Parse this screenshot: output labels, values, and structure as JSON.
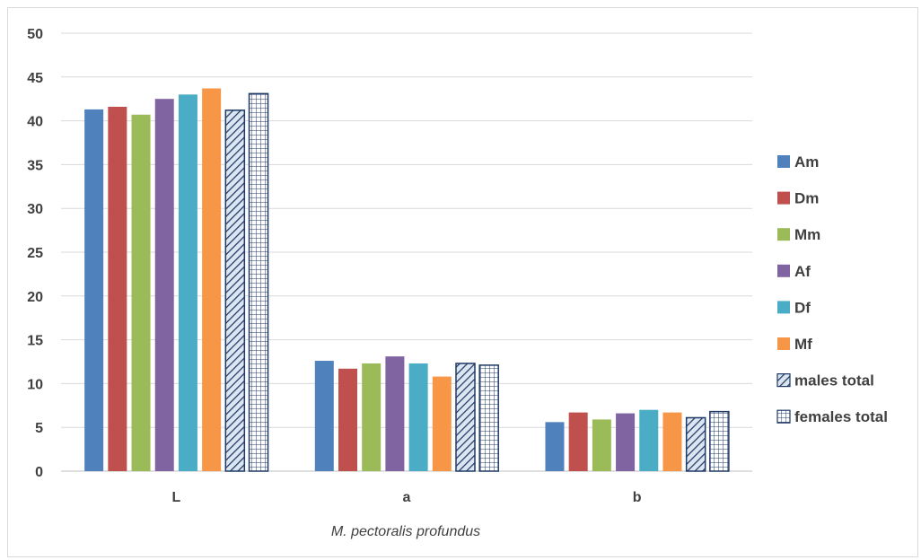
{
  "chart_data": {
    "type": "bar",
    "categories": [
      "L",
      "a",
      "b"
    ],
    "xlabel": "M. pectoralis profundus",
    "ylabel": "",
    "ylim": [
      0,
      50
    ],
    "yticks": [
      0,
      5,
      10,
      15,
      20,
      25,
      30,
      35,
      40,
      45,
      50
    ],
    "grid": true,
    "legend_position": "right",
    "series": [
      {
        "name": "Am",
        "values": [
          41.3,
          12.6,
          5.6
        ],
        "color": "#4f81bd",
        "pattern": "solid"
      },
      {
        "name": "Dm",
        "values": [
          41.6,
          11.7,
          6.7
        ],
        "color": "#c0504d",
        "pattern": "solid"
      },
      {
        "name": "Mm",
        "values": [
          40.7,
          12.3,
          5.9
        ],
        "color": "#9bbb59",
        "pattern": "solid"
      },
      {
        "name": "Af",
        "values": [
          42.5,
          13.1,
          6.6
        ],
        "color": "#8064a2",
        "pattern": "solid"
      },
      {
        "name": "Df",
        "values": [
          43.0,
          12.3,
          7.0
        ],
        "color": "#4bacc6",
        "pattern": "solid"
      },
      {
        "name": "Mf",
        "values": [
          43.7,
          10.8,
          6.7
        ],
        "color": "#f79646",
        "pattern": "solid"
      },
      {
        "name": "males total",
        "values": [
          41.2,
          12.3,
          6.1
        ],
        "color": "#1f3864",
        "pattern": "diagonal"
      },
      {
        "name": "females total",
        "values": [
          43.1,
          12.1,
          6.8
        ],
        "color": "#1f3864",
        "pattern": "grid"
      }
    ]
  }
}
